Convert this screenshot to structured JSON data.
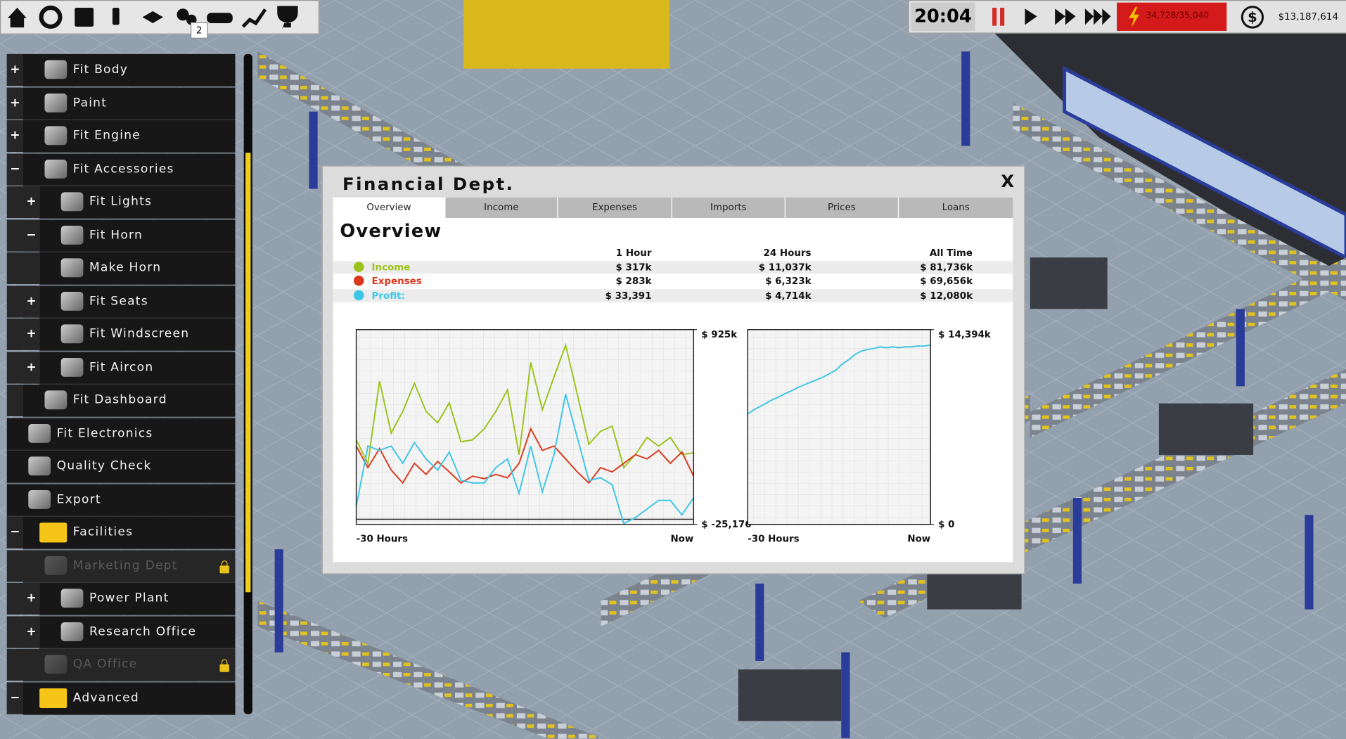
{
  "toolbar": {
    "badge": "2"
  },
  "status": {
    "time": "20:04",
    "power": "34,728/35,040",
    "money": "$13,187,614"
  },
  "menu": [
    {
      "label": "Fit Body",
      "toggle": "+"
    },
    {
      "label": "Paint",
      "toggle": "+"
    },
    {
      "label": "Fit Engine",
      "toggle": "+"
    },
    {
      "label": "Fit Accessories",
      "toggle": "−"
    },
    {
      "label": "Fit Lights",
      "toggle": "+"
    },
    {
      "label": "Fit Horn",
      "toggle": "−"
    },
    {
      "label": "Make Horn"
    },
    {
      "label": "Fit Seats",
      "toggle": "+"
    },
    {
      "label": "Fit Windscreen",
      "toggle": "+"
    },
    {
      "label": "Fit Aircon",
      "toggle": "+"
    },
    {
      "label": "Fit Dashboard"
    },
    {
      "label": "Fit Electronics"
    },
    {
      "label": "Quality Check"
    },
    {
      "label": "Export"
    },
    {
      "label": "Facilities",
      "toggle": "−"
    },
    {
      "label": "Marketing Dept",
      "locked": true
    },
    {
      "label": "Power Plant",
      "toggle": "+"
    },
    {
      "label": "Research Office",
      "toggle": "+"
    },
    {
      "label": "QA Office",
      "locked": true
    },
    {
      "label": "Advanced",
      "toggle": "−"
    }
  ],
  "dialog": {
    "title": "Financial Dept.",
    "close": "X",
    "tabs": [
      "Overview",
      "Income",
      "Expenses",
      "Imports",
      "Prices",
      "Loans"
    ],
    "heading": "Overview",
    "table": {
      "columns": [
        "1 Hour",
        "24 Hours",
        "All Time"
      ],
      "rows": [
        [
          "$ 317k",
          "$ 11,037k",
          "$ 81,736k"
        ],
        [
          "$ 283k",
          "$ 6,323k",
          "$ 69,656k"
        ],
        [
          "$ 33,391",
          "$ 4,714k",
          "$ 12,080k"
        ]
      ]
    }
  },
  "chart_data": [
    {
      "type": "line",
      "x": [
        "-30 Hours",
        null,
        null,
        null,
        null,
        null,
        null,
        null,
        null,
        null,
        null,
        null,
        null,
        null,
        null,
        null,
        null,
        null,
        null,
        null,
        null,
        null,
        null,
        null,
        null,
        null,
        null,
        null,
        null,
        "Now"
      ],
      "series": [
        {
          "name": "Income",
          "color": "#9bc31c",
          "values": [
            387000,
            273000,
            673000,
            420000,
            526000,
            664000,
            526000,
            471000,
            568000,
            378000,
            387000,
            441000,
            526000,
            631000,
            315000,
            765000,
            534000,
            694000,
            849000,
            610000,
            366000,
            429000,
            454000,
            252000,
            315000,
            399000,
            357000,
            399000,
            315000,
            324000
          ]
        },
        {
          "name": "Expenses",
          "color": "#d9391d",
          "values": [
            357000,
            252000,
            345000,
            240000,
            177000,
            273000,
            219000,
            282000,
            231000,
            177000,
            210000,
            198000,
            219000,
            202000,
            273000,
            441000,
            336000,
            357000,
            294000,
            231000,
            177000,
            252000,
            231000,
            273000,
            315000,
            294000,
            336000,
            273000,
            328000,
            210000
          ]
        },
        {
          "name": "Profit:",
          "color": "#3ec6e6",
          "values": [
            63000,
            357000,
            336000,
            357000,
            273000,
            374000,
            294000,
            240000,
            328000,
            189000,
            177000,
            177000,
            252000,
            294000,
            126000,
            357000,
            134000,
            315000,
            610000,
            399000,
            189000,
            202000,
            168000,
            -21000,
            8000,
            50000,
            92000,
            92000,
            21000,
            105000
          ]
        }
      ],
      "ylim": [
        -25176,
        925000
      ],
      "yticks": [
        {
          "value": 925000,
          "label": "$ 925k"
        },
        {
          "value": -25176,
          "label": "$ -25,176"
        }
      ],
      "grid": true
    },
    {
      "type": "line",
      "x": [
        "-30 Hours",
        null,
        null,
        null,
        null,
        null,
        null,
        null,
        null,
        null,
        null,
        null,
        null,
        null,
        null,
        null,
        null,
        null,
        null,
        null,
        null,
        null,
        null,
        null,
        null,
        null,
        null,
        null,
        null,
        "Now"
      ],
      "series": [
        {
          "name": "Balance",
          "color": "#3ec6e6",
          "values": [
            8152000,
            8471000,
            8726000,
            8980000,
            9235000,
            9426000,
            9681000,
            9872000,
            10127000,
            10318000,
            10509000,
            10700000,
            10891000,
            11146000,
            11401000,
            11846000,
            12165000,
            12547000,
            12802000,
            12929000,
            12993000,
            13120000,
            13056000,
            13120000,
            13056000,
            13120000,
            13120000,
            13184000,
            13184000,
            13248000
          ]
        }
      ],
      "ylim": [
        0,
        14394000
      ],
      "yticks": [
        {
          "value": 14394000,
          "label": "$ 14,394k"
        },
        {
          "value": 0,
          "label": "$ 0"
        }
      ],
      "grid": true
    }
  ]
}
